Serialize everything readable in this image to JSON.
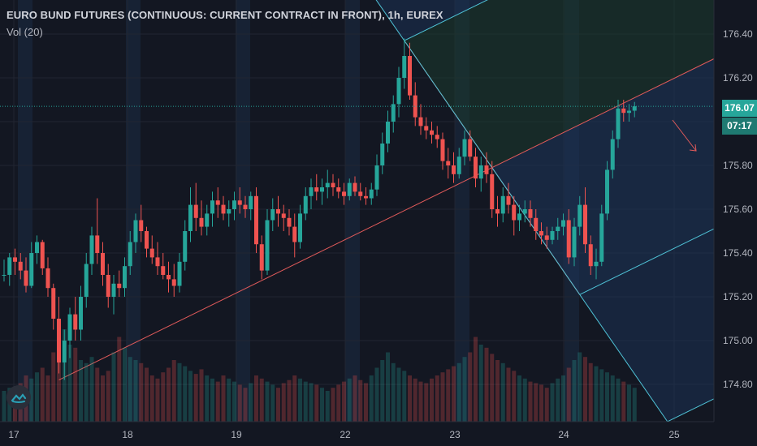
{
  "header": {
    "title": "EURO BUND FUTURES (CONTINUOUS: CURRENT CONTRACT IN FRONT), 1h, EUREX",
    "volume_label": "Vol (20)"
  },
  "price_badge": "176.07",
  "countdown_badge": "07:17",
  "colors": {
    "background": "#131722",
    "up": "#26a69a",
    "down": "#ef5350",
    "session_shade": "#172234",
    "pitchfork_line": "#4fc3d7",
    "pitchfork_median": "#e05a5a",
    "pitchfork_upper_fill": "#1c3a2e",
    "pitchfork_lower_fill": "#1c3457"
  },
  "icons": {
    "logo": "tradingview-cloud-icon"
  },
  "chart_data": {
    "type": "candlestick",
    "title": "EURO BUND FUTURES (CONTINUOUS: CURRENT CONTRACT IN FRONT), 1h, EUREX",
    "y_ticks": [
      "174.80",
      "175.00",
      "175.20",
      "175.40",
      "175.60",
      "175.80",
      "176.00",
      "176.20",
      "176.40"
    ],
    "x_ticks": [
      "17",
      "18",
      "19",
      "22",
      "23",
      "24",
      "25"
    ],
    "ylim": [
      174.72,
      176.55
    ],
    "last_price": 176.07,
    "candles_ohlc": [
      [
        175.3,
        175.37,
        175.27,
        175.3
      ],
      [
        175.3,
        175.4,
        175.25,
        175.38
      ],
      [
        175.38,
        175.42,
        175.3,
        175.36
      ],
      [
        175.36,
        175.4,
        175.28,
        175.32
      ],
      [
        175.32,
        175.38,
        175.22,
        175.25
      ],
      [
        175.25,
        175.45,
        175.24,
        175.4
      ],
      [
        175.4,
        175.48,
        175.35,
        175.45
      ],
      [
        175.45,
        175.46,
        175.3,
        175.33
      ],
      [
        175.33,
        175.38,
        175.2,
        175.24
      ],
      [
        175.24,
        175.26,
        175.05,
        175.1
      ],
      [
        175.1,
        175.2,
        174.85,
        174.9
      ],
      [
        174.9,
        175.05,
        174.82,
        175.0
      ],
      [
        175.0,
        175.15,
        174.92,
        175.12
      ],
      [
        175.12,
        175.2,
        175.0,
        175.05
      ],
      [
        175.05,
        175.25,
        175.0,
        175.2
      ],
      [
        175.2,
        175.4,
        175.15,
        175.35
      ],
      [
        175.35,
        175.52,
        175.3,
        175.48
      ],
      [
        175.48,
        175.65,
        175.35,
        175.4
      ],
      [
        175.4,
        175.45,
        175.25,
        175.3
      ],
      [
        175.3,
        175.35,
        175.15,
        175.2
      ],
      [
        175.2,
        175.3,
        175.12,
        175.26
      ],
      [
        175.26,
        175.32,
        175.2,
        175.24
      ],
      [
        175.24,
        175.38,
        175.2,
        175.34
      ],
      [
        175.34,
        175.5,
        175.3,
        175.45
      ],
      [
        175.45,
        175.58,
        175.4,
        175.55
      ],
      [
        175.55,
        175.62,
        175.45,
        175.5
      ],
      [
        175.5,
        175.52,
        175.38,
        175.42
      ],
      [
        175.42,
        175.48,
        175.35,
        175.38
      ],
      [
        175.38,
        175.45,
        175.3,
        175.34
      ],
      [
        175.34,
        175.4,
        175.28,
        175.3
      ],
      [
        175.3,
        175.36,
        175.22,
        175.28
      ],
      [
        175.28,
        175.35,
        175.2,
        175.25
      ],
      [
        175.25,
        175.4,
        175.22,
        175.36
      ],
      [
        175.36,
        175.55,
        175.32,
        175.5
      ],
      [
        175.5,
        175.7,
        175.45,
        175.62
      ],
      [
        175.62,
        175.72,
        175.5,
        175.56
      ],
      [
        175.56,
        175.64,
        175.48,
        175.52
      ],
      [
        175.52,
        175.62,
        175.48,
        175.58
      ],
      [
        175.58,
        175.68,
        175.52,
        175.64
      ],
      [
        175.64,
        175.7,
        175.56,
        175.62
      ],
      [
        175.62,
        175.66,
        175.55,
        175.58
      ],
      [
        175.58,
        175.64,
        175.52,
        175.6
      ],
      [
        175.6,
        175.68,
        175.55,
        175.64
      ],
      [
        175.64,
        175.7,
        175.58,
        175.62
      ],
      [
        175.62,
        175.66,
        175.56,
        175.6
      ],
      [
        175.6,
        175.68,
        175.55,
        175.66
      ],
      [
        175.66,
        175.7,
        175.4,
        175.44
      ],
      [
        175.44,
        175.48,
        175.28,
        175.32
      ],
      [
        175.32,
        175.6,
        175.3,
        175.55
      ],
      [
        175.55,
        175.65,
        175.5,
        175.6
      ],
      [
        175.6,
        175.66,
        175.52,
        175.58
      ],
      [
        175.58,
        175.62,
        175.5,
        175.56
      ],
      [
        175.56,
        175.6,
        175.48,
        175.52
      ],
      [
        175.52,
        175.58,
        175.38,
        175.45
      ],
      [
        175.45,
        175.62,
        175.42,
        175.58
      ],
      [
        175.58,
        175.7,
        175.55,
        175.66
      ],
      [
        175.66,
        175.74,
        175.6,
        175.7
      ],
      [
        175.7,
        175.76,
        175.64,
        175.68
      ],
      [
        175.68,
        175.74,
        175.62,
        175.7
      ],
      [
        175.7,
        175.78,
        175.65,
        175.72
      ],
      [
        175.72,
        175.76,
        175.66,
        175.7
      ],
      [
        175.7,
        175.74,
        175.65,
        175.68
      ],
      [
        175.68,
        175.72,
        175.62,
        175.66
      ],
      [
        175.66,
        175.74,
        175.64,
        175.72
      ],
      [
        175.72,
        175.75,
        175.66,
        175.68
      ],
      [
        175.68,
        175.72,
        175.64,
        175.66
      ],
      [
        175.66,
        175.7,
        175.62,
        175.65
      ],
      [
        175.65,
        175.72,
        175.62,
        175.69
      ],
      [
        175.69,
        175.85,
        175.66,
        175.8
      ],
      [
        175.8,
        175.95,
        175.76,
        175.9
      ],
      [
        175.9,
        176.05,
        175.86,
        176.0
      ],
      [
        176.0,
        176.12,
        175.95,
        176.08
      ],
      [
        176.08,
        176.25,
        176.02,
        176.2
      ],
      [
        176.2,
        176.38,
        176.15,
        176.3
      ],
      [
        176.3,
        176.36,
        176.1,
        176.12
      ],
      [
        176.12,
        176.18,
        175.98,
        176.02
      ],
      [
        176.02,
        176.08,
        175.94,
        175.98
      ],
      [
        175.98,
        176.02,
        175.92,
        175.96
      ],
      [
        175.96,
        176.0,
        175.9,
        175.94
      ],
      [
        175.94,
        175.98,
        175.88,
        175.92
      ],
      [
        175.92,
        175.95,
        175.78,
        175.82
      ],
      [
        175.82,
        175.88,
        175.74,
        175.8
      ],
      [
        175.8,
        175.86,
        175.72,
        175.76
      ],
      [
        175.76,
        175.88,
        175.74,
        175.84
      ],
      [
        175.84,
        175.96,
        175.8,
        175.92
      ],
      [
        175.92,
        175.96,
        175.82,
        175.84
      ],
      [
        175.84,
        175.88,
        175.7,
        175.74
      ],
      [
        175.74,
        175.84,
        175.68,
        175.8
      ],
      [
        175.8,
        175.86,
        175.72,
        175.76
      ],
      [
        175.76,
        175.82,
        175.56,
        175.6
      ],
      [
        175.6,
        175.66,
        175.52,
        175.58
      ],
      [
        175.58,
        175.7,
        175.54,
        175.66
      ],
      [
        175.66,
        175.72,
        175.58,
        175.62
      ],
      [
        175.62,
        175.66,
        175.48,
        175.55
      ],
      [
        175.55,
        175.62,
        175.5,
        175.58
      ],
      [
        175.58,
        175.64,
        175.54,
        175.6
      ],
      [
        175.6,
        175.64,
        175.52,
        175.56
      ],
      [
        175.56,
        175.6,
        175.46,
        175.5
      ],
      [
        175.5,
        175.54,
        175.44,
        175.48
      ],
      [
        175.48,
        175.52,
        175.42,
        175.46
      ],
      [
        175.46,
        175.52,
        175.44,
        175.5
      ],
      [
        175.5,
        175.56,
        175.46,
        175.52
      ],
      [
        175.52,
        175.58,
        175.48,
        175.55
      ],
      [
        175.55,
        175.6,
        175.35,
        175.38
      ],
      [
        175.38,
        175.56,
        175.34,
        175.52
      ],
      [
        175.52,
        175.66,
        175.48,
        175.62
      ],
      [
        175.62,
        175.7,
        175.4,
        175.44
      ],
      [
        175.44,
        175.48,
        175.3,
        175.34
      ],
      [
        175.34,
        175.42,
        175.28,
        175.36
      ],
      [
        175.36,
        175.62,
        175.34,
        175.58
      ],
      [
        175.58,
        175.82,
        175.55,
        175.78
      ],
      [
        175.78,
        175.96,
        175.74,
        175.92
      ],
      [
        175.92,
        176.1,
        175.88,
        176.06
      ],
      [
        176.06,
        176.1,
        176.0,
        176.04
      ],
      [
        176.04,
        176.08,
        176.0,
        176.05
      ],
      [
        176.05,
        176.09,
        176.02,
        176.07
      ]
    ],
    "volume": [
      0.2,
      0.22,
      0.18,
      0.25,
      0.3,
      0.28,
      0.32,
      0.35,
      0.3,
      0.45,
      0.55,
      0.6,
      0.5,
      0.48,
      0.4,
      0.38,
      0.42,
      0.35,
      0.3,
      0.33,
      0.45,
      0.55,
      0.48,
      0.42,
      0.4,
      0.38,
      0.35,
      0.3,
      0.28,
      0.32,
      0.35,
      0.4,
      0.38,
      0.36,
      0.33,
      0.31,
      0.34,
      0.3,
      0.28,
      0.26,
      0.3,
      0.28,
      0.26,
      0.24,
      0.22,
      0.25,
      0.3,
      0.28,
      0.26,
      0.24,
      0.22,
      0.25,
      0.27,
      0.3,
      0.28,
      0.26,
      0.25,
      0.24,
      0.22,
      0.2,
      0.22,
      0.24,
      0.26,
      0.28,
      0.3,
      0.27,
      0.25,
      0.3,
      0.35,
      0.4,
      0.45,
      0.38,
      0.35,
      0.33,
      0.3,
      0.28,
      0.26,
      0.25,
      0.28,
      0.3,
      0.32,
      0.34,
      0.36,
      0.38,
      0.42,
      0.45,
      0.55,
      0.5,
      0.48,
      0.44,
      0.4,
      0.38,
      0.35,
      0.33,
      0.3,
      0.28,
      0.26,
      0.25,
      0.24,
      0.22,
      0.25,
      0.28,
      0.3,
      0.35,
      0.4,
      0.45,
      0.42,
      0.38,
      0.36,
      0.34,
      0.32,
      0.3,
      0.28,
      0.26,
      0.24,
      0.22
    ],
    "grid": true,
    "pitchfork": {
      "pivot_a": {
        "candle": 10,
        "price": 174.82
      },
      "pivot_b": {
        "candle": 73,
        "price": 176.37
      },
      "pivot_c": {
        "candle": 105,
        "price": 175.21
      }
    }
  }
}
